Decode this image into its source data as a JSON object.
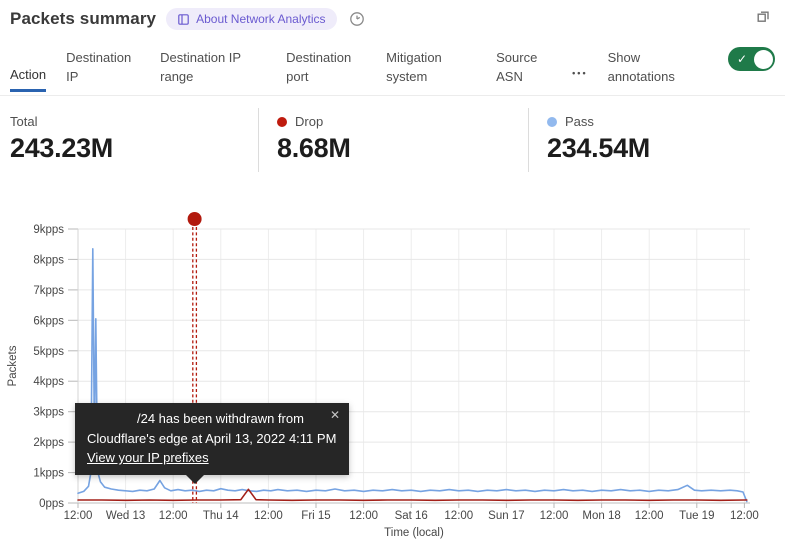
{
  "header": {
    "title": "Packets summary",
    "about_badge": "About Network Analytics"
  },
  "tabs": {
    "items": [
      {
        "label": "Action",
        "active": true
      },
      {
        "label": "Destination IP",
        "active": false
      },
      {
        "label": "Destination IP range",
        "active": false
      },
      {
        "label": "Destination port",
        "active": false
      },
      {
        "label": "Mitigation system",
        "active": false
      },
      {
        "label": "Source ASN",
        "active": false
      }
    ],
    "more_label": "•••",
    "show_annotations_label": "Show annotations",
    "annotations_enabled": true
  },
  "icons": {
    "toggle_check": "✓",
    "tooltip_close": "✕"
  },
  "stats": [
    {
      "label": "Total",
      "value": "243.23M",
      "dot_color": null
    },
    {
      "label": "Drop",
      "value": "8.68M",
      "dot_color": "#bf1b0e"
    },
    {
      "label": "Pass",
      "value": "234.54M",
      "dot_color": "#92b9ee"
    }
  ],
  "annotation_tooltip": {
    "line1": "/24 has been withdrawn from",
    "line2": "Cloudflare's edge at April 13, 2022 4:11 PM",
    "link_label": "View your IP prefixes"
  },
  "chart_data": {
    "type": "line",
    "title": "Packets summary",
    "xlabel": "Time (local)",
    "ylabel": "Packets",
    "y_unit": "kpps",
    "ylim": [
      0,
      9
    ],
    "grid": true,
    "y_tick_labels": [
      "0pps",
      "1kpps",
      "2kpps",
      "3kpps",
      "4kpps",
      "5kpps",
      "6kpps",
      "7kpps",
      "8kpps",
      "9kpps"
    ],
    "x_tick_labels": [
      "12:00",
      "Wed 13",
      "12:00",
      "Thu 14",
      "12:00",
      "Fri 15",
      "12:00",
      "Sat 16",
      "12:00",
      "Sun 17",
      "12:00",
      "Mon 18",
      "12:00",
      "Tue 19",
      "12:00"
    ],
    "series": [
      {
        "name": "Pass",
        "color": "#76a3e2",
        "points": [
          [
            0.0,
            0.32
          ],
          [
            0.12,
            0.38
          ],
          [
            0.22,
            0.55
          ],
          [
            0.27,
            1.0
          ],
          [
            0.31,
            8.35
          ],
          [
            0.345,
            2.1
          ],
          [
            0.375,
            6.05
          ],
          [
            0.41,
            1.05
          ],
          [
            0.47,
            0.7
          ],
          [
            0.56,
            0.52
          ],
          [
            0.7,
            0.46
          ],
          [
            0.85,
            0.42
          ],
          [
            1.0,
            0.4
          ],
          [
            1.15,
            0.38
          ],
          [
            1.3,
            0.42
          ],
          [
            1.45,
            0.4
          ],
          [
            1.6,
            0.46
          ],
          [
            1.72,
            0.74
          ],
          [
            1.82,
            0.5
          ],
          [
            1.95,
            0.4
          ],
          [
            2.1,
            0.44
          ],
          [
            2.25,
            0.4
          ],
          [
            2.4,
            0.42
          ],
          [
            2.55,
            0.38
          ],
          [
            2.7,
            0.42
          ],
          [
            2.85,
            0.4
          ],
          [
            3.0,
            0.47
          ],
          [
            3.15,
            0.42
          ],
          [
            3.3,
            0.4
          ],
          [
            3.45,
            0.44
          ],
          [
            3.6,
            0.4
          ],
          [
            3.75,
            0.38
          ],
          [
            3.9,
            0.42
          ],
          [
            4.05,
            0.4
          ],
          [
            4.2,
            0.44
          ],
          [
            4.4,
            0.4
          ],
          [
            4.6,
            0.42
          ],
          [
            4.8,
            0.38
          ],
          [
            5.0,
            0.42
          ],
          [
            5.2,
            0.4
          ],
          [
            5.4,
            0.46
          ],
          [
            5.6,
            0.4
          ],
          [
            5.8,
            0.42
          ],
          [
            6.0,
            0.38
          ],
          [
            6.2,
            0.42
          ],
          [
            6.4,
            0.4
          ],
          [
            6.6,
            0.44
          ],
          [
            6.8,
            0.4
          ],
          [
            7.0,
            0.42
          ],
          [
            7.2,
            0.38
          ],
          [
            7.4,
            0.42
          ],
          [
            7.6,
            0.4
          ],
          [
            7.8,
            0.44
          ],
          [
            8.0,
            0.4
          ],
          [
            8.2,
            0.42
          ],
          [
            8.4,
            0.38
          ],
          [
            8.6,
            0.42
          ],
          [
            8.8,
            0.4
          ],
          [
            9.0,
            0.44
          ],
          [
            9.2,
            0.4
          ],
          [
            9.4,
            0.42
          ],
          [
            9.6,
            0.38
          ],
          [
            9.8,
            0.42
          ],
          [
            10.0,
            0.4
          ],
          [
            10.2,
            0.44
          ],
          [
            10.4,
            0.4
          ],
          [
            10.6,
            0.42
          ],
          [
            10.8,
            0.38
          ],
          [
            11.0,
            0.42
          ],
          [
            11.2,
            0.4
          ],
          [
            11.4,
            0.44
          ],
          [
            11.6,
            0.4
          ],
          [
            11.8,
            0.42
          ],
          [
            12.0,
            0.38
          ],
          [
            12.2,
            0.42
          ],
          [
            12.4,
            0.4
          ],
          [
            12.6,
            0.44
          ],
          [
            12.8,
            0.58
          ],
          [
            12.95,
            0.42
          ],
          [
            13.1,
            0.4
          ],
          [
            13.3,
            0.42
          ],
          [
            13.5,
            0.4
          ],
          [
            13.7,
            0.42
          ],
          [
            13.85,
            0.4
          ],
          [
            13.97,
            0.36
          ],
          [
            14.05,
            0.05
          ]
        ]
      },
      {
        "name": "Drop",
        "color": "#a32019",
        "points": [
          [
            0.0,
            0.1
          ],
          [
            0.5,
            0.1
          ],
          [
            1.0,
            0.09
          ],
          [
            1.5,
            0.1
          ],
          [
            2.0,
            0.09
          ],
          [
            2.5,
            0.1
          ],
          [
            3.0,
            0.1
          ],
          [
            3.42,
            0.11
          ],
          [
            3.58,
            0.45
          ],
          [
            3.74,
            0.11
          ],
          [
            4.0,
            0.1
          ],
          [
            4.5,
            0.09
          ],
          [
            5.0,
            0.1
          ],
          [
            5.5,
            0.1
          ],
          [
            6.0,
            0.09
          ],
          [
            6.5,
            0.1
          ],
          [
            7.0,
            0.1
          ],
          [
            7.5,
            0.09
          ],
          [
            8.0,
            0.1
          ],
          [
            8.5,
            0.1
          ],
          [
            9.0,
            0.09
          ],
          [
            9.5,
            0.1
          ],
          [
            10.0,
            0.1
          ],
          [
            10.5,
            0.09
          ],
          [
            11.0,
            0.1
          ],
          [
            11.5,
            0.1
          ],
          [
            12.0,
            0.09
          ],
          [
            12.5,
            0.1
          ],
          [
            13.0,
            0.1
          ],
          [
            13.5,
            0.09
          ],
          [
            14.0,
            0.1
          ],
          [
            14.05,
            0.1
          ]
        ]
      }
    ],
    "annotation": {
      "x_tick": 2.45,
      "color": "#b21a0e",
      "label": "/24 has been withdrawn from Cloudflare's edge at April 13, 2022 4:11 PM"
    },
    "legend_position": "top"
  }
}
